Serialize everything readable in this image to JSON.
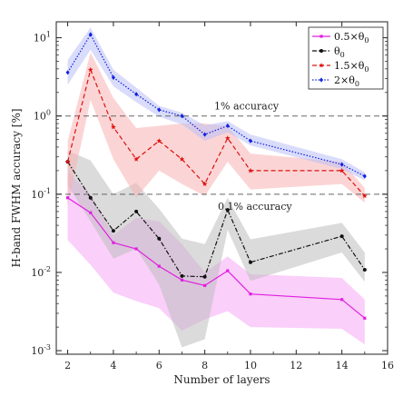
{
  "chart_data": {
    "type": "line",
    "xlabel": "Number of layers",
    "ylabel": "H-band FWHM accuracy [%]",
    "xlim": [
      1.5,
      16
    ],
    "ylim": [
      0.0009,
      16
    ],
    "yscale": "log",
    "xticks": [
      "2",
      "4",
      "6",
      "8",
      "10",
      "12",
      "14",
      "16"
    ],
    "xtick_values": [
      2,
      4,
      6,
      8,
      10,
      12,
      14,
      16
    ],
    "yticks": [
      "10^{-3}",
      "10^{-2}",
      "10^{-1}",
      "10^{0}",
      "10^{1}"
    ],
    "ytick_values": [
      0.001,
      0.01,
      0.1,
      1,
      10
    ],
    "legend_position": "top-right",
    "reference_lines": [
      {
        "y": 1,
        "label": "1% accuracy"
      },
      {
        "y": 0.1,
        "label": "0.1% accuracy"
      }
    ],
    "series": [
      {
        "name": "0.5×θ",
        "name_sub": "0",
        "color": "#e020e0",
        "band_color": "#f5a8f5",
        "linestyle": "solid",
        "marker": "square",
        "x": [
          2,
          3,
          4,
          5,
          6,
          7,
          8,
          9,
          10,
          14,
          15
        ],
        "y": [
          0.09,
          0.058,
          0.024,
          0.02,
          0.012,
          0.008,
          0.0068,
          0.0105,
          0.0053,
          0.0045,
          0.0026
        ],
        "lower": [
          0.026,
          0.0125,
          0.0055,
          0.0043,
          0.0035,
          0.0018,
          0.0025,
          0.0032,
          0.002,
          0.0019,
          0.0012
        ],
        "upper": [
          0.19,
          0.1,
          0.03,
          0.05,
          0.045,
          0.023,
          0.01,
          0.016,
          0.0095,
          0.0085,
          0.0045
        ]
      },
      {
        "name": "θ",
        "name_sub": "0",
        "color": "#111111",
        "band_color": "#bdbdbd",
        "linestyle": "dashdot",
        "marker": "circle",
        "x": [
          2,
          3,
          4,
          5,
          6,
          7,
          8,
          9,
          10,
          14,
          15
        ],
        "y": [
          0.26,
          0.09,
          0.034,
          0.06,
          0.027,
          0.009,
          0.0088,
          0.063,
          0.0135,
          0.029,
          0.0108
        ],
        "lower": [
          0.13,
          0.045,
          0.015,
          0.02,
          0.007,
          0.0011,
          0.0014,
          0.035,
          0.0078,
          0.018,
          0.0076
        ],
        "upper": [
          0.36,
          0.27,
          0.1,
          0.14,
          0.065,
          0.027,
          0.023,
          0.09,
          0.0265,
          0.043,
          0.018
        ]
      },
      {
        "name": "1.5×θ",
        "name_sub": "0",
        "color": "#e01010",
        "band_color": "#f7b3b3",
        "linestyle": "dashed",
        "marker": "star",
        "x": [
          2,
          3,
          4,
          5,
          6,
          7,
          8,
          9,
          10,
          14,
          15
        ],
        "y": [
          0.26,
          3.9,
          0.72,
          0.28,
          0.48,
          0.28,
          0.135,
          0.52,
          0.2,
          0.2,
          0.095
        ],
        "lower": [
          0.07,
          1.6,
          0.28,
          0.09,
          0.2,
          0.135,
          0.095,
          0.26,
          0.115,
          0.135,
          0.078
        ],
        "upper": [
          0.48,
          6.5,
          1.7,
          0.7,
          0.75,
          0.8,
          0.8,
          0.74,
          0.33,
          0.26,
          0.12
        ]
      },
      {
        "name": "2×θ",
        "name_sub": "0",
        "color": "#1020e0",
        "band_color": "#b9bff5",
        "linestyle": "dotted",
        "marker": "diamond",
        "x": [
          2,
          3,
          4,
          5,
          6,
          7,
          8,
          9,
          10,
          14,
          15
        ],
        "y": [
          3.6,
          11.0,
          3.1,
          1.9,
          1.2,
          1.0,
          0.58,
          0.75,
          0.48,
          0.24,
          0.17
        ],
        "lower": [
          2.5,
          7.0,
          2.4,
          1.5,
          0.98,
          0.78,
          0.48,
          0.62,
          0.42,
          0.21,
          0.15
        ],
        "upper": [
          5.2,
          13.5,
          3.9,
          2.3,
          1.35,
          1.1,
          0.76,
          0.86,
          0.58,
          0.28,
          0.19
        ]
      }
    ]
  }
}
